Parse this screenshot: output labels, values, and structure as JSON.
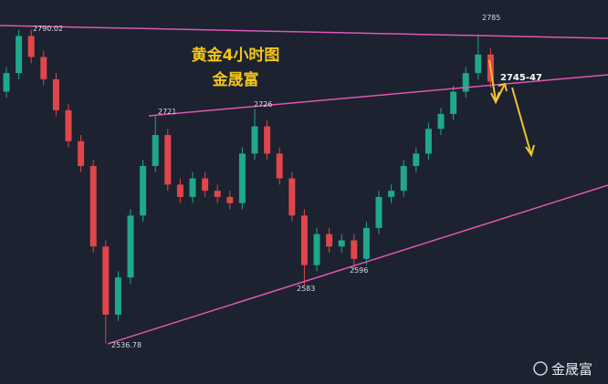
{
  "chart_data": {
    "type": "candlestick",
    "title": "黄金4小时图",
    "subtitle": "金晟富",
    "open": [
      2740,
      2755,
      2785,
      2768,
      2750,
      2725,
      2700,
      2680,
      2615,
      2560,
      2590,
      2640,
      2680,
      2705,
      2665,
      2655,
      2670,
      2660,
      2655,
      2650,
      2690,
      2712,
      2690,
      2670,
      2640,
      2600,
      2625,
      2615,
      2620,
      2605,
      2630,
      2655,
      2660,
      2680,
      2690,
      2710,
      2722,
      2740,
      2755,
      2770
    ],
    "high": [
      2760,
      2790.02,
      2790,
      2773,
      2755,
      2730,
      2705,
      2685,
      2620,
      2595,
      2645,
      2685,
      2721,
      2710,
      2670,
      2675,
      2675,
      2665,
      2660,
      2695,
      2726,
      2717,
      2695,
      2675,
      2645,
      2630,
      2630,
      2625,
      2625,
      2635,
      2660,
      2665,
      2685,
      2695,
      2715,
      2727,
      2745,
      2760,
      2785,
      2775
    ],
    "low": [
      2735,
      2750,
      2763,
      2745,
      2720,
      2695,
      2675,
      2610,
      2536.78,
      2555,
      2585,
      2635,
      2675,
      2660,
      2650,
      2650,
      2655,
      2650,
      2645,
      2645,
      2685,
      2685,
      2665,
      2635,
      2583,
      2595,
      2610,
      2610,
      2596,
      2600,
      2625,
      2650,
      2655,
      2675,
      2685,
      2705,
      2717,
      2735,
      2750,
      2743
    ],
    "close": [
      2755,
      2785,
      2768,
      2750,
      2725,
      2700,
      2680,
      2615,
      2560,
      2590,
      2640,
      2680,
      2705,
      2665,
      2655,
      2670,
      2660,
      2655,
      2650,
      2690,
      2712,
      2690,
      2670,
      2640,
      2600,
      2625,
      2615,
      2620,
      2605,
      2630,
      2655,
      2660,
      2680,
      2690,
      2710,
      2722,
      2740,
      2755,
      2770,
      2748
    ],
    "up_color": "#1fa88a",
    "down_color": "#e0464b",
    "ylim": [
      2504,
      2814
    ],
    "annotations": [
      "2790.02",
      "2721",
      "2726",
      "2583",
      "2596",
      "2536.78",
      "2785",
      "2745-47"
    ],
    "watermark": "金晟富"
  }
}
